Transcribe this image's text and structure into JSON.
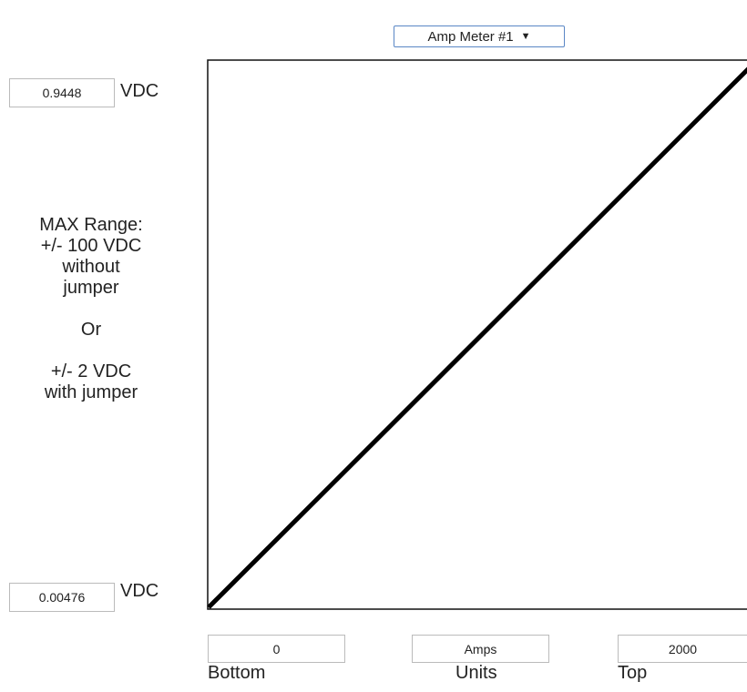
{
  "selector": {
    "label": "Amp Meter #1"
  },
  "voltage": {
    "top": "0.9448",
    "bottom": "0.00476",
    "unit": "VDC"
  },
  "range_note": {
    "lines": [
      "MAX Range:",
      "+/- 100 VDC",
      "without",
      "jumper",
      "Or",
      "+/- 2 VDC",
      "with jumper"
    ]
  },
  "scale": {
    "bottom": {
      "value": "0",
      "label": "Bottom"
    },
    "units": {
      "value": "Amps",
      "label": "Units"
    },
    "top": {
      "value": "2000",
      "label": "Top"
    }
  }
}
